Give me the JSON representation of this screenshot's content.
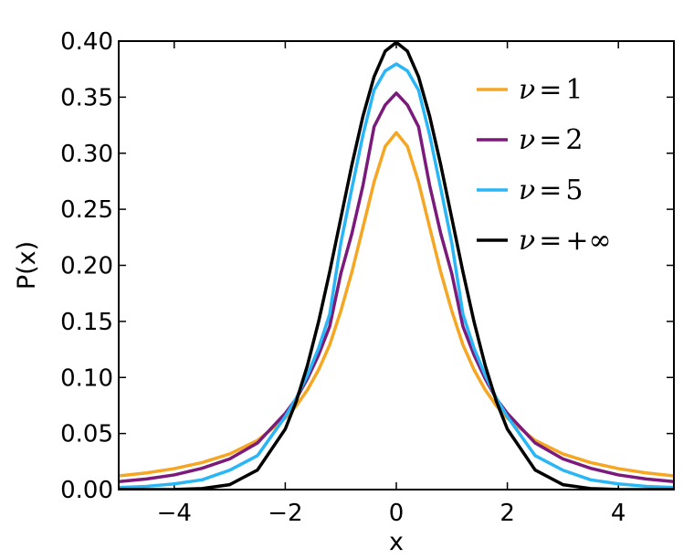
{
  "chart_data": {
    "type": "line",
    "xlabel": "x",
    "ylabel": "P(x)",
    "xlim": [
      -5,
      5
    ],
    "ylim": [
      0,
      0.4
    ],
    "x_ticks": [
      "−4",
      "−2",
      "0",
      "2",
      "4"
    ],
    "x_tick_values": [
      -4,
      -2,
      0,
      2,
      4
    ],
    "y_ticks": [
      "0.00",
      "0.05",
      "0.10",
      "0.15",
      "0.20",
      "0.25",
      "0.30",
      "0.35",
      "0.40"
    ],
    "y_tick_values": [
      0,
      0.05,
      0.1,
      0.15,
      0.2,
      0.25,
      0.3,
      0.35,
      0.4
    ],
    "grid": false,
    "legend_position": "top-right",
    "legend": [
      {
        "label": "ν = 1",
        "nu_label": "ν",
        "eq_label": "=",
        "value_label": "1"
      },
      {
        "label": "ν = 2",
        "nu_label": "ν",
        "eq_label": "=",
        "value_label": "2"
      },
      {
        "label": "ν = 5",
        "nu_label": "ν",
        "eq_label": "=",
        "value_label": "5"
      },
      {
        "label": "ν = +∞",
        "nu_label": "ν",
        "eq_label": "=",
        "value_label": "+∞"
      }
    ],
    "series": [
      {
        "name": "ν = 1",
        "color": "#f5a623",
        "x": [
          -5,
          -4.5,
          -4,
          -3.5,
          -3,
          -2.5,
          -2,
          -1.8,
          -1.6,
          -1.4,
          -1.2,
          -1,
          -0.8,
          -0.6,
          -0.4,
          -0.2,
          0,
          0.2,
          0.4,
          0.6,
          0.8,
          1,
          1.2,
          1.4,
          1.6,
          1.8,
          2,
          2.5,
          3,
          3.5,
          4,
          4.5,
          5
        ],
        "y": [
          0.0122,
          0.0149,
          0.0187,
          0.0241,
          0.0318,
          0.0439,
          0.0637,
          0.0748,
          0.089,
          0.1068,
          0.1291,
          0.1592,
          0.1941,
          0.234,
          0.2744,
          0.3061,
          0.3183,
          0.3061,
          0.2744,
          0.234,
          0.1941,
          0.1592,
          0.1291,
          0.1068,
          0.089,
          0.0748,
          0.0637,
          0.0439,
          0.0318,
          0.0241,
          0.0187,
          0.0149,
          0.0122
        ]
      },
      {
        "name": "ν = 2",
        "color": "#7b1a7b",
        "x": [
          -5,
          -4.5,
          -4,
          -3.5,
          -3,
          -2.5,
          -2,
          -1.8,
          -1.6,
          -1.4,
          -1.2,
          -1,
          -0.8,
          -0.6,
          -0.4,
          -0.2,
          0,
          0.2,
          0.4,
          0.6,
          0.8,
          1,
          1.2,
          1.4,
          1.6,
          1.8,
          2,
          2.5,
          3,
          3.5,
          4,
          4.5,
          5
        ],
        "y": [
          0.0071,
          0.0095,
          0.0131,
          0.019,
          0.0274,
          0.0416,
          0.068,
          0.0812,
          0.099,
          0.1201,
          0.1455,
          0.1925,
          0.2284,
          0.2714,
          0.3237,
          0.343,
          0.3536,
          0.343,
          0.3237,
          0.2714,
          0.2284,
          0.1925,
          0.1455,
          0.1201,
          0.099,
          0.0812,
          0.068,
          0.0416,
          0.0274,
          0.019,
          0.0131,
          0.0095,
          0.0071
        ]
      },
      {
        "name": "ν = 5",
        "color": "#29b6f6",
        "x": [
          -5,
          -4.5,
          -4,
          -3.5,
          -3,
          -2.5,
          -2,
          -1.8,
          -1.6,
          -1.4,
          -1.2,
          -1,
          -0.8,
          -0.6,
          -0.4,
          -0.2,
          0,
          0.2,
          0.4,
          0.6,
          0.8,
          1,
          1.2,
          1.4,
          1.6,
          1.8,
          2,
          2.5,
          3,
          3.5,
          4,
          4.5,
          5
        ],
        "y": [
          0.0018,
          0.0029,
          0.0051,
          0.0087,
          0.0173,
          0.0303,
          0.0651,
          0.0818,
          0.1022,
          0.126,
          0.1564,
          0.2197,
          0.2687,
          0.3164,
          0.3563,
          0.3734,
          0.3796,
          0.3734,
          0.3563,
          0.3164,
          0.2687,
          0.2197,
          0.1564,
          0.126,
          0.1022,
          0.0818,
          0.0651,
          0.0303,
          0.0173,
          0.0087,
          0.0051,
          0.0029,
          0.0018
        ]
      },
      {
        "name": "ν = +∞",
        "color": "#000000",
        "x": [
          -5,
          -4.5,
          -4,
          -3.5,
          -3,
          -2.5,
          -2,
          -1.8,
          -1.6,
          -1.4,
          -1.2,
          -1,
          -0.8,
          -0.6,
          -0.4,
          -0.2,
          0,
          0.2,
          0.4,
          0.6,
          0.8,
          1,
          1.2,
          1.4,
          1.6,
          1.8,
          2,
          2.5,
          3,
          3.5,
          4,
          4.5,
          5
        ],
        "y": [
          0.0,
          0.0,
          0.0001,
          0.0009,
          0.0044,
          0.0175,
          0.054,
          0.079,
          0.1109,
          0.1497,
          0.1942,
          0.242,
          0.2897,
          0.3332,
          0.3683,
          0.391,
          0.3989,
          0.391,
          0.3683,
          0.3332,
          0.2897,
          0.242,
          0.1942,
          0.1497,
          0.1109,
          0.079,
          0.054,
          0.0175,
          0.0044,
          0.0009,
          0.0001,
          0.0,
          0.0
        ]
      }
    ]
  }
}
